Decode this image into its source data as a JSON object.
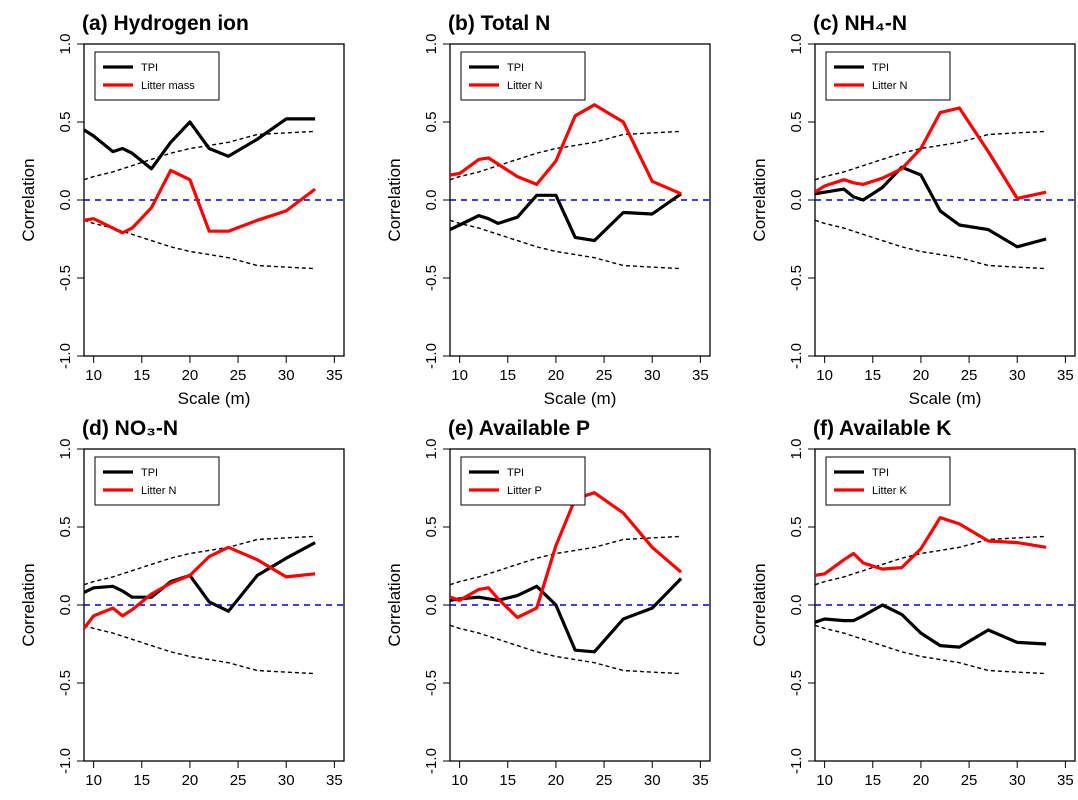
{
  "colors": {
    "tpi": "#000000",
    "litter": "#ff0000",
    "zero_line": "#0000cc",
    "envelope": "#000000"
  },
  "axes": {
    "xlabel": "Scale (m)",
    "ylabel": "Correlation",
    "xlim": [
      9,
      36
    ],
    "ylim": [
      -1.0,
      1.0
    ],
    "xticks": [
      10,
      15,
      20,
      25,
      30,
      35
    ],
    "yticks": [
      -1.0,
      -0.5,
      0.0,
      0.5,
      1.0
    ],
    "ytick_labels": [
      "-1.0",
      "-0.5",
      "0.0",
      "0.5",
      "1.0"
    ]
  },
  "chart_data": [
    {
      "type": "line",
      "title": "(a) Hydrogen ion",
      "legend_position": "top-left",
      "x": [
        9,
        10,
        12,
        13,
        14,
        16,
        18,
        20,
        22,
        24,
        27,
        30,
        33
      ],
      "series": [
        {
          "name": "TPI",
          "values": [
            0.45,
            0.41,
            0.31,
            0.33,
            0.3,
            0.2,
            0.37,
            0.5,
            0.33,
            0.28,
            0.39,
            0.52,
            0.52
          ]
        },
        {
          "name": "Litter mass",
          "values": [
            -0.13,
            -0.12,
            -0.18,
            -0.21,
            -0.18,
            -0.05,
            0.19,
            0.13,
            -0.2,
            -0.2,
            -0.13,
            -0.07,
            0.07
          ]
        }
      ],
      "envelope_upper": [
        0.13,
        0.15,
        0.18,
        0.2,
        0.22,
        0.26,
        0.3,
        0.33,
        0.35,
        0.37,
        0.42,
        0.43,
        0.44
      ],
      "envelope_lower": [
        -0.13,
        -0.15,
        -0.18,
        -0.2,
        -0.22,
        -0.26,
        -0.3,
        -0.33,
        -0.35,
        -0.37,
        -0.42,
        -0.43,
        -0.44
      ]
    },
    {
      "type": "line",
      "title": "(b) Total N",
      "legend_position": "top-left",
      "x": [
        9,
        10,
        12,
        13,
        14,
        16,
        18,
        20,
        22,
        24,
        27,
        30,
        33
      ],
      "series": [
        {
          "name": "TPI",
          "values": [
            -0.19,
            -0.16,
            -0.1,
            -0.12,
            -0.15,
            -0.11,
            0.03,
            0.03,
            -0.24,
            -0.26,
            -0.08,
            -0.09,
            0.04
          ]
        },
        {
          "name": "Litter N",
          "values": [
            0.16,
            0.17,
            0.26,
            0.27,
            0.23,
            0.15,
            0.1,
            0.25,
            0.54,
            0.61,
            0.5,
            0.12,
            0.04
          ]
        }
      ],
      "envelope_upper": [
        0.13,
        0.15,
        0.18,
        0.2,
        0.22,
        0.26,
        0.3,
        0.33,
        0.35,
        0.37,
        0.42,
        0.43,
        0.44
      ],
      "envelope_lower": [
        -0.13,
        -0.15,
        -0.18,
        -0.2,
        -0.22,
        -0.26,
        -0.3,
        -0.33,
        -0.35,
        -0.37,
        -0.42,
        -0.43,
        -0.44
      ]
    },
    {
      "type": "line",
      "title": "(c) NH₄-N",
      "legend_position": "top-left",
      "x": [
        9,
        10,
        12,
        13,
        14,
        16,
        18,
        20,
        22,
        24,
        27,
        30,
        33
      ],
      "series": [
        {
          "name": "TPI",
          "values": [
            0.04,
            0.05,
            0.07,
            0.02,
            0.0,
            0.08,
            0.21,
            0.16,
            -0.07,
            -0.16,
            -0.19,
            -0.3,
            -0.25
          ]
        },
        {
          "name": "Litter N",
          "values": [
            0.05,
            0.09,
            0.13,
            0.11,
            0.1,
            0.14,
            0.2,
            0.33,
            0.56,
            0.59,
            0.31,
            0.01,
            0.05
          ]
        }
      ],
      "envelope_upper": [
        0.13,
        0.15,
        0.18,
        0.2,
        0.22,
        0.26,
        0.3,
        0.33,
        0.35,
        0.37,
        0.42,
        0.43,
        0.44
      ],
      "envelope_lower": [
        -0.13,
        -0.15,
        -0.18,
        -0.2,
        -0.22,
        -0.26,
        -0.3,
        -0.33,
        -0.35,
        -0.37,
        -0.42,
        -0.43,
        -0.44
      ]
    },
    {
      "type": "line",
      "title": "(d) NO₃-N",
      "legend_position": "top-left",
      "x": [
        9,
        10,
        12,
        13,
        14,
        16,
        18,
        20,
        22,
        24,
        27,
        30,
        33
      ],
      "series": [
        {
          "name": "TPI",
          "values": [
            0.08,
            0.11,
            0.12,
            0.09,
            0.05,
            0.05,
            0.15,
            0.19,
            0.02,
            -0.04,
            0.19,
            0.3,
            0.4
          ]
        },
        {
          "name": "Litter N",
          "values": [
            -0.15,
            -0.07,
            -0.02,
            -0.07,
            -0.03,
            0.07,
            0.14,
            0.19,
            0.31,
            0.37,
            0.29,
            0.18,
            0.2
          ]
        }
      ],
      "envelope_upper": [
        0.13,
        0.15,
        0.18,
        0.2,
        0.22,
        0.26,
        0.3,
        0.33,
        0.35,
        0.37,
        0.42,
        0.43,
        0.44
      ],
      "envelope_lower": [
        -0.13,
        -0.15,
        -0.18,
        -0.2,
        -0.22,
        -0.26,
        -0.3,
        -0.33,
        -0.35,
        -0.37,
        -0.42,
        -0.43,
        -0.44
      ]
    },
    {
      "type": "line",
      "title": "(e) Available P",
      "legend_position": "top-left",
      "x": [
        9,
        10,
        12,
        13,
        14,
        16,
        18,
        20,
        22,
        24,
        27,
        30,
        33
      ],
      "series": [
        {
          "name": "TPI",
          "values": [
            0.03,
            0.04,
            0.05,
            0.04,
            0.03,
            0.06,
            0.12,
            0.0,
            -0.29,
            -0.3,
            -0.09,
            -0.02,
            0.17
          ]
        },
        {
          "name": "Litter P",
          "values": [
            0.05,
            0.03,
            0.1,
            0.11,
            0.04,
            -0.08,
            -0.02,
            0.38,
            0.68,
            0.72,
            0.59,
            0.37,
            0.21
          ]
        }
      ],
      "envelope_upper": [
        0.13,
        0.15,
        0.18,
        0.2,
        0.22,
        0.26,
        0.3,
        0.33,
        0.35,
        0.37,
        0.42,
        0.43,
        0.44
      ],
      "envelope_lower": [
        -0.13,
        -0.15,
        -0.18,
        -0.2,
        -0.22,
        -0.26,
        -0.3,
        -0.33,
        -0.35,
        -0.37,
        -0.42,
        -0.43,
        -0.44
      ]
    },
    {
      "type": "line",
      "title": "(f) Available K",
      "legend_position": "top-left",
      "x": [
        9,
        10,
        12,
        13,
        14,
        16,
        18,
        20,
        22,
        24,
        27,
        30,
        33
      ],
      "series": [
        {
          "name": "TPI",
          "values": [
            -0.11,
            -0.09,
            -0.1,
            -0.1,
            -0.07,
            0.0,
            -0.06,
            -0.18,
            -0.26,
            -0.27,
            -0.16,
            -0.24,
            -0.25
          ]
        },
        {
          "name": "Litter K",
          "values": [
            0.19,
            0.2,
            0.29,
            0.33,
            0.27,
            0.23,
            0.24,
            0.36,
            0.56,
            0.52,
            0.41,
            0.4,
            0.37
          ]
        }
      ],
      "envelope_upper": [
        0.13,
        0.15,
        0.18,
        0.2,
        0.22,
        0.26,
        0.3,
        0.33,
        0.35,
        0.37,
        0.42,
        0.43,
        0.44
      ],
      "envelope_lower": [
        -0.13,
        -0.15,
        -0.18,
        -0.2,
        -0.22,
        -0.26,
        -0.3,
        -0.33,
        -0.35,
        -0.37,
        -0.42,
        -0.43,
        -0.44
      ]
    }
  ]
}
